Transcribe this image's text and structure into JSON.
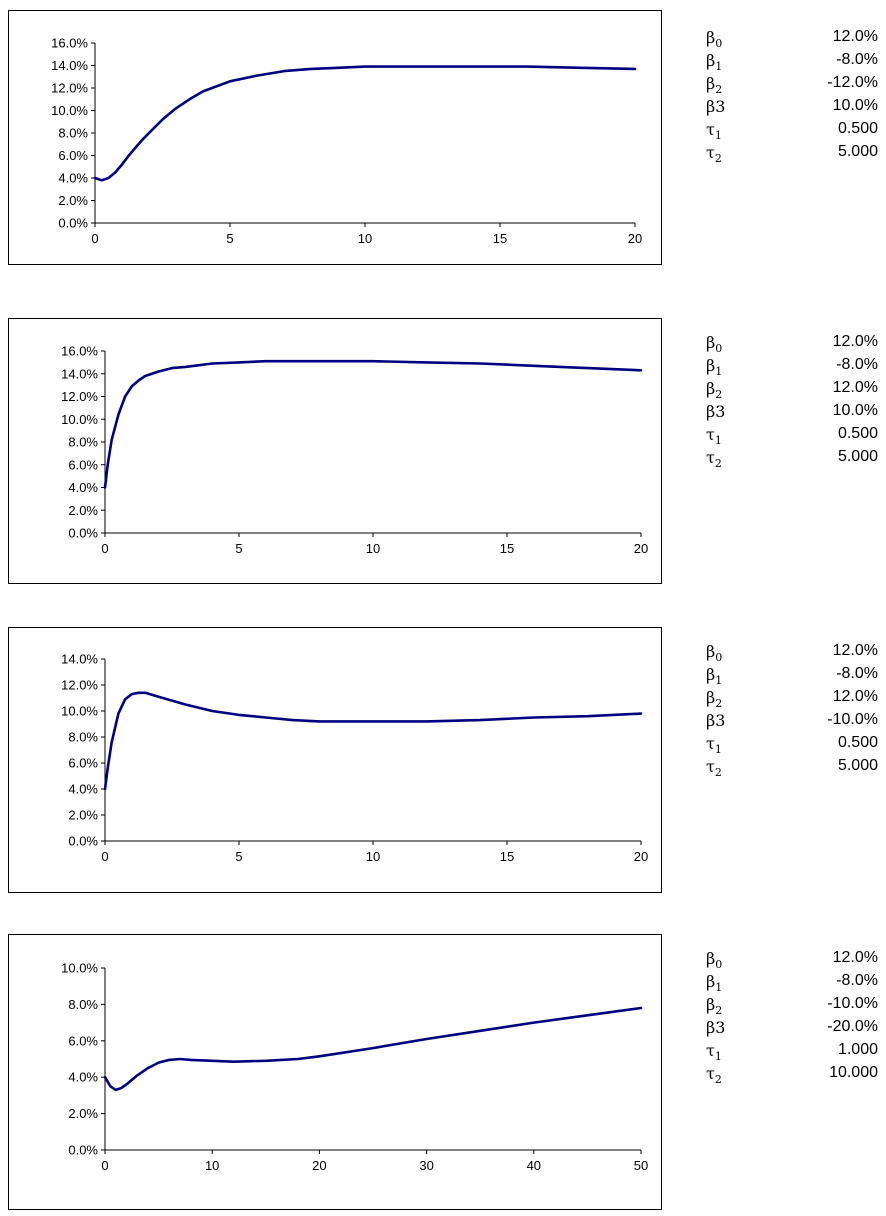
{
  "panels": [
    {
      "params": [
        {
          "symbol": "β",
          "sub": "0",
          "value": "12.0%"
        },
        {
          "symbol": "β",
          "sub": "1",
          "value": "-8.0%"
        },
        {
          "symbol": "β",
          "sub": "2",
          "value": "-12.0%"
        },
        {
          "symbol": "β3",
          "sub": "",
          "value": "10.0%"
        },
        {
          "symbol": "τ",
          "sub": "1",
          "value": "0.500"
        },
        {
          "symbol": "τ",
          "sub": "2",
          "value": "5.000"
        }
      ]
    },
    {
      "params": [
        {
          "symbol": "β",
          "sub": "0",
          "value": "12.0%"
        },
        {
          "symbol": "β",
          "sub": "1",
          "value": "-8.0%"
        },
        {
          "symbol": "β",
          "sub": "2",
          "value": "12.0%"
        },
        {
          "symbol": "β3",
          "sub": "",
          "value": "10.0%"
        },
        {
          "symbol": "τ",
          "sub": "1",
          "value": "0.500"
        },
        {
          "symbol": "τ",
          "sub": "2",
          "value": "5.000"
        }
      ]
    },
    {
      "params": [
        {
          "symbol": "β",
          "sub": "0",
          "value": "12.0%"
        },
        {
          "symbol": "β",
          "sub": "1",
          "value": "-8.0%"
        },
        {
          "symbol": "β",
          "sub": "2",
          "value": "12.0%"
        },
        {
          "symbol": "β3",
          "sub": "",
          "value": "-10.0%"
        },
        {
          "symbol": "τ",
          "sub": "1",
          "value": "0.500"
        },
        {
          "symbol": "τ",
          "sub": "2",
          "value": "5.000"
        }
      ]
    },
    {
      "params": [
        {
          "symbol": "β",
          "sub": "0",
          "value": "12.0%"
        },
        {
          "symbol": "β",
          "sub": "1",
          "value": "-8.0%"
        },
        {
          "symbol": "β",
          "sub": "2",
          "value": "-10.0%"
        },
        {
          "symbol": "β3",
          "sub": "",
          "value": "-20.0%"
        },
        {
          "symbol": "τ",
          "sub": "1",
          "value": "1.000"
        },
        {
          "symbol": "τ",
          "sub": "2",
          "value": "10.000"
        }
      ]
    }
  ],
  "chart_data": [
    {
      "type": "line",
      "series_color": "#000080",
      "grid": false,
      "xlim": [
        0,
        20
      ],
      "ylim": [
        0,
        16
      ],
      "x_ticks": [
        "0",
        "5",
        "10",
        "15",
        "20"
      ],
      "y_ticks": [
        "0.0%",
        "2.0%",
        "4.0%",
        "6.0%",
        "8.0%",
        "10.0%",
        "12.0%",
        "14.0%",
        "16.0%"
      ],
      "x": [
        0,
        0.25,
        0.5,
        0.75,
        1,
        1.25,
        1.5,
        1.75,
        2,
        2.5,
        3,
        3.5,
        4,
        5,
        6,
        7,
        8,
        9,
        10,
        12,
        14,
        16,
        18,
        20
      ],
      "y": [
        4.0,
        3.8,
        4.0,
        4.5,
        5.2,
        6.0,
        6.7,
        7.4,
        8.0,
        9.2,
        10.2,
        11.0,
        11.7,
        12.6,
        13.1,
        13.5,
        13.7,
        13.8,
        13.9,
        13.9,
        13.9,
        13.9,
        13.8,
        13.7
      ]
    },
    {
      "type": "line",
      "series_color": "#000080",
      "grid": false,
      "xlim": [
        0,
        20
      ],
      "ylim": [
        0,
        16
      ],
      "x_ticks": [
        "0",
        "5",
        "10",
        "15",
        "20"
      ],
      "y_ticks": [
        "0.0%",
        "2.0%",
        "4.0%",
        "6.0%",
        "8.0%",
        "10.0%",
        "12.0%",
        "14.0%",
        "16.0%"
      ],
      "x": [
        0,
        0.1,
        0.25,
        0.5,
        0.75,
        1,
        1.25,
        1.5,
        2,
        2.5,
        3,
        4,
        5,
        6,
        8,
        10,
        12,
        14,
        16,
        18,
        20
      ],
      "y": [
        4.0,
        6.0,
        8.2,
        10.4,
        12.0,
        12.9,
        13.4,
        13.8,
        14.2,
        14.5,
        14.6,
        14.9,
        15.0,
        15.1,
        15.1,
        15.1,
        15.0,
        14.9,
        14.7,
        14.5,
        14.3
      ]
    },
    {
      "type": "line",
      "series_color": "#000080",
      "grid": false,
      "xlim": [
        0,
        20
      ],
      "ylim": [
        0,
        14
      ],
      "x_ticks": [
        "0",
        "5",
        "10",
        "15",
        "20"
      ],
      "y_ticks": [
        "0.0%",
        "2.0%",
        "4.0%",
        "6.0%",
        "8.0%",
        "10.0%",
        "12.0%",
        "14.0%"
      ],
      "x": [
        0,
        0.1,
        0.25,
        0.5,
        0.75,
        1,
        1.25,
        1.5,
        2,
        2.5,
        3,
        4,
        5,
        6,
        7,
        8,
        10,
        12,
        14,
        16,
        18,
        20
      ],
      "y": [
        4.0,
        5.6,
        7.6,
        9.8,
        10.9,
        11.3,
        11.4,
        11.4,
        11.1,
        10.8,
        10.5,
        10.0,
        9.7,
        9.5,
        9.3,
        9.2,
        9.2,
        9.2,
        9.3,
        9.5,
        9.6,
        9.8
      ]
    },
    {
      "type": "line",
      "series_color": "#000080",
      "grid": false,
      "xlim": [
        0,
        50
      ],
      "ylim": [
        0,
        10
      ],
      "x_ticks": [
        "0",
        "10",
        "20",
        "30",
        "40",
        "50"
      ],
      "y_ticks": [
        "0.0%",
        "2.0%",
        "4.0%",
        "6.0%",
        "8.0%",
        "10.0%"
      ],
      "x": [
        0,
        0.5,
        1,
        1.5,
        2,
        3,
        4,
        5,
        6,
        7,
        8,
        10,
        12,
        15,
        18,
        20,
        25,
        30,
        35,
        40,
        45,
        50
      ],
      "y": [
        4.0,
        3.5,
        3.3,
        3.4,
        3.6,
        4.1,
        4.5,
        4.8,
        4.95,
        5.0,
        4.95,
        4.9,
        4.85,
        4.9,
        5.0,
        5.15,
        5.6,
        6.1,
        6.55,
        7.0,
        7.4,
        7.8
      ]
    }
  ]
}
